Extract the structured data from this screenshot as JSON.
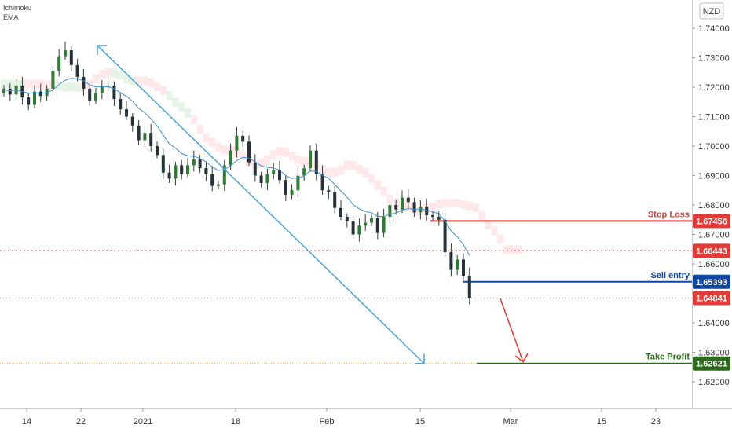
{
  "indicators": [
    "Ichimoku",
    "EMA"
  ],
  "currency": "NZD",
  "chart_data": {
    "type": "line",
    "title": "",
    "xlabel": "",
    "ylabel": "",
    "ylim": [
      1.612,
      1.748
    ],
    "y_ticks": [
      "1.74000",
      "1.73000",
      "1.72000",
      "1.71000",
      "1.70000",
      "1.69000",
      "1.68000",
      "1.67000",
      "1.66000",
      "1.65000",
      "1.64000",
      "1.63000",
      "1.62000"
    ],
    "x_ticks": [
      "14",
      "22",
      "2021",
      "18",
      "Feb",
      "15",
      "Mar",
      "15",
      "23"
    ],
    "series": [
      {
        "type": "candlestick-close",
        "color": "#2e7d32",
        "values": [
          1.7195,
          1.7175,
          1.7205,
          1.7165,
          1.714,
          1.7185,
          1.717,
          1.7195,
          1.7255,
          1.7305,
          1.7325,
          1.7275,
          1.7235,
          1.7195,
          1.7155,
          1.718,
          1.72,
          1.7205,
          1.716,
          1.7125,
          1.71,
          1.707,
          1.702,
          1.7045,
          1.7,
          1.697,
          1.691,
          1.689,
          1.6935,
          1.6905,
          1.6935,
          1.6955,
          1.6925,
          1.6905,
          1.6865,
          1.687,
          1.6935,
          1.6985,
          1.7035,
          1.7015,
          1.6945,
          1.69,
          1.6875,
          1.6905,
          1.692,
          1.6885,
          1.6835,
          1.685,
          1.69,
          1.6925,
          1.6985,
          1.6905,
          1.685,
          1.6845,
          1.679,
          1.676,
          1.6745,
          1.67,
          1.673,
          1.674,
          1.6755,
          1.6705,
          1.676,
          1.68,
          1.6785,
          1.6825,
          1.681,
          1.6775,
          1.6795,
          1.6765,
          1.676,
          1.675,
          1.664,
          1.658,
          1.6615,
          1.656,
          1.6484
        ]
      }
    ],
    "ema": {
      "color": "#3b8fd4",
      "values": [
        1.719,
        1.7188,
        1.719,
        1.7185,
        1.718,
        1.7181,
        1.7179,
        1.7181,
        1.7191,
        1.7209,
        1.7224,
        1.723,
        1.7228,
        1.7222,
        1.7208,
        1.7201,
        1.7201,
        1.7202,
        1.7194,
        1.7182,
        1.7169,
        1.7152,
        1.7128,
        1.7113,
        1.7092,
        1.7069,
        1.7037,
        1.7008,
        1.6993,
        1.6975,
        1.6967,
        1.6965,
        1.6958,
        1.6947,
        1.6929,
        1.6917,
        1.6921,
        1.6933,
        1.6951,
        1.6962,
        1.6959,
        1.6947,
        1.6933,
        1.6928,
        1.6926,
        1.6918,
        1.69,
        1.689,
        1.6892,
        1.6899,
        1.6916,
        1.6914,
        1.6901,
        1.689,
        1.687,
        1.6848,
        1.6827,
        1.6801,
        1.6787,
        1.6778,
        1.6774,
        1.6761,
        1.6761,
        1.6769,
        1.6772,
        1.6783,
        1.6788,
        1.6785,
        1.6787,
        1.6782,
        1.6777,
        1.6771,
        1.6745,
        1.6712,
        1.6692,
        1.6665,
        1.6628
      ]
    },
    "levels": [
      {
        "label": "Stop Loss",
        "value": "1.67456",
        "y": 1.67456,
        "color": "#e53935",
        "style": "solid"
      },
      {
        "label": "",
        "value": "1.66443",
        "y": 1.66443,
        "color": "#e53935",
        "style": "dotted"
      },
      {
        "label": "Sell entry",
        "value": "1.65393",
        "y": 1.65393,
        "color": "#0d47a1",
        "style": "solid"
      },
      {
        "label": "",
        "value": "1.64841",
        "y": 1.64841,
        "color": "#e53935",
        "style": "dotted-light"
      },
      {
        "label": "Take Profit",
        "value": "1.62621",
        "y": 1.62621,
        "color": "#2e6b1f",
        "style": "solid"
      }
    ],
    "trend_arrow": {
      "from": [
        22,
        1.7345
      ],
      "to": [
        105,
        1.6262
      ],
      "color": "#4aa3e0"
    },
    "projection_arrow": {
      "from": [
        81,
        1.652
      ],
      "to": [
        85,
        1.6262
      ],
      "color": "#e53935"
    },
    "grid": false,
    "legend": "none"
  }
}
